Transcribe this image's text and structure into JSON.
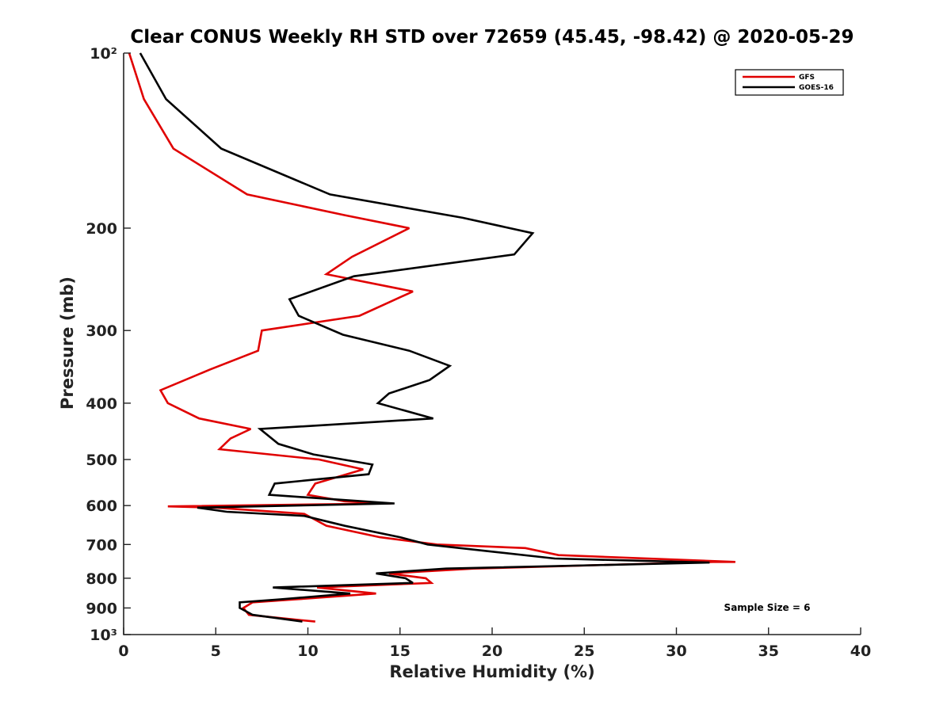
{
  "chart_data": {
    "type": "line",
    "title": "Clear CONUS Weekly RH STD over 72659 (45.45, -98.42) @ 2020-05-29",
    "xlabel": "Relative Humidity (%)",
    "ylabel": "Pressure (mb)",
    "xlim": [
      0,
      40
    ],
    "ylim": [
      100,
      1000
    ],
    "yscale": "log",
    "yreversed": true,
    "x_ticks": [
      0,
      5,
      10,
      15,
      20,
      25,
      30,
      35,
      40
    ],
    "x_tick_labels": [
      "0",
      "5",
      "10",
      "15",
      "20",
      "25",
      "30",
      "35",
      "40"
    ],
    "y_ticks": [
      100,
      200,
      300,
      400,
      500,
      600,
      700,
      800,
      900,
      1000
    ],
    "y_tick_labels": [
      "10²",
      "200",
      "300",
      "400",
      "500",
      "600",
      "700",
      "800",
      "900",
      "10³"
    ],
    "legend_position": "top-right",
    "annotation": "Sample Size = 6",
    "series": [
      {
        "name": "GFS",
        "color": "#e00000",
        "points": [
          [
            0.3,
            100
          ],
          [
            1.1,
            120
          ],
          [
            2.7,
            146
          ],
          [
            6.7,
            175
          ],
          [
            12.0,
            190
          ],
          [
            15.5,
            200
          ],
          [
            12.4,
            224
          ],
          [
            11.0,
            240
          ],
          [
            15.7,
            257
          ],
          [
            12.8,
            283
          ],
          [
            7.5,
            300
          ],
          [
            7.3,
            325
          ],
          [
            4.7,
            350
          ],
          [
            2.0,
            380
          ],
          [
            2.4,
            400
          ],
          [
            4.1,
            425
          ],
          [
            6.9,
            443
          ],
          [
            5.8,
            460
          ],
          [
            5.2,
            480
          ],
          [
            10.6,
            500
          ],
          [
            13.0,
            520
          ],
          [
            10.4,
            550
          ],
          [
            10.0,
            575
          ],
          [
            12.0,
            590
          ],
          [
            14.5,
            595
          ],
          [
            2.4,
            602
          ],
          [
            5.0,
            605
          ],
          [
            9.8,
            620
          ],
          [
            11.0,
            650
          ],
          [
            13.9,
            680
          ],
          [
            17.0,
            700
          ],
          [
            21.8,
            710
          ],
          [
            23.6,
            730
          ],
          [
            33.2,
            750
          ],
          [
            32.0,
            750
          ],
          [
            19.0,
            770
          ],
          [
            14.4,
            785
          ],
          [
            16.4,
            800
          ],
          [
            16.7,
            815
          ],
          [
            10.5,
            830
          ],
          [
            13.7,
            850
          ],
          [
            9.3,
            870
          ],
          [
            7.0,
            880
          ],
          [
            6.5,
            900
          ],
          [
            6.8,
            925
          ],
          [
            10.4,
            950
          ]
        ]
      },
      {
        "name": "GOES-16",
        "color": "#000000",
        "points": [
          [
            0.9,
            100
          ],
          [
            2.3,
            120
          ],
          [
            5.3,
            146
          ],
          [
            11.2,
            175
          ],
          [
            18.4,
            192
          ],
          [
            22.2,
            204
          ],
          [
            21.2,
            222
          ],
          [
            12.5,
            242
          ],
          [
            9.0,
            265
          ],
          [
            9.5,
            283
          ],
          [
            11.9,
            305
          ],
          [
            15.5,
            325
          ],
          [
            17.7,
            345
          ],
          [
            16.6,
            365
          ],
          [
            14.4,
            385
          ],
          [
            13.8,
            400
          ],
          [
            16.8,
            425
          ],
          [
            7.4,
            443
          ],
          [
            8.4,
            470
          ],
          [
            10.3,
            490
          ],
          [
            13.5,
            510
          ],
          [
            13.3,
            530
          ],
          [
            8.2,
            550
          ],
          [
            7.9,
            575
          ],
          [
            14.7,
            595
          ],
          [
            4.0,
            605
          ],
          [
            5.6,
            615
          ],
          [
            9.8,
            625
          ],
          [
            12.0,
            650
          ],
          [
            15.0,
            680
          ],
          [
            16.5,
            700
          ],
          [
            20.0,
            720
          ],
          [
            23.4,
            740
          ],
          [
            31.8,
            752
          ],
          [
            17.5,
            770
          ],
          [
            13.7,
            785
          ],
          [
            15.3,
            800
          ],
          [
            15.7,
            815
          ],
          [
            8.1,
            830
          ],
          [
            12.3,
            850
          ],
          [
            8.5,
            870
          ],
          [
            6.3,
            880
          ],
          [
            6.3,
            900
          ],
          [
            7.0,
            925
          ],
          [
            9.7,
            950
          ]
        ]
      }
    ]
  }
}
